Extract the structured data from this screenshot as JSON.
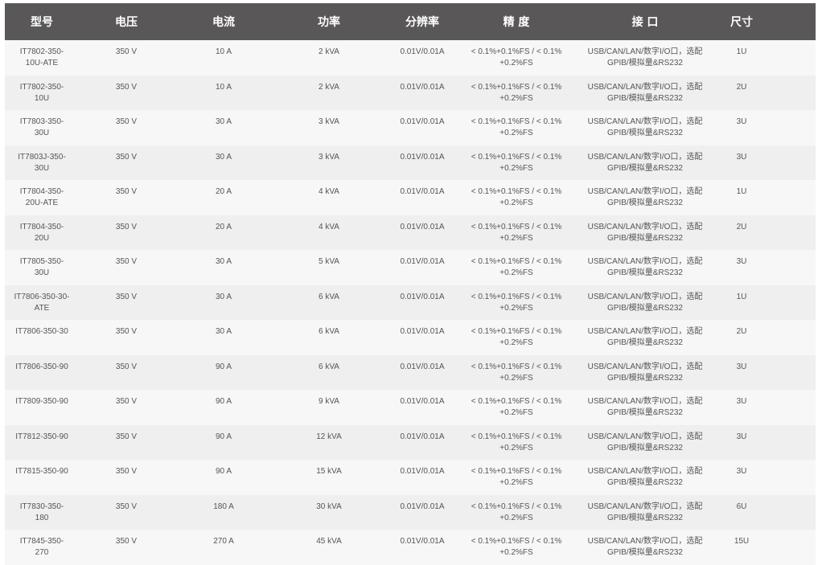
{
  "headers": [
    "型号",
    "电压",
    "电流",
    "功率",
    "分辨率",
    "精 度",
    "接 口",
    "尺寸"
  ],
  "rows": [
    {
      "model": "IT7802-350-\n10U-ATE",
      "voltage": "350 V",
      "current": "10 A",
      "power": "2 kVA",
      "resolution": "0.01V/0.01A",
      "accuracy": "< 0.1%+0.1%FS / < 0.1%\n+0.2%FS",
      "interface": "USB/CAN/LAN/数字I/O口，选配\nGPIB/模拟量&RS232",
      "size": "1U"
    },
    {
      "model": "IT7802-350-\n10U",
      "voltage": "350 V",
      "current": "10 A",
      "power": "2 kVA",
      "resolution": "0.01V/0.01A",
      "accuracy": "< 0.1%+0.1%FS / < 0.1%\n+0.2%FS",
      "interface": "USB/CAN/LAN/数字I/O口，选配\nGPIB/模拟量&RS232",
      "size": "2U"
    },
    {
      "model": "IT7803-350-\n30U",
      "voltage": "350 V",
      "current": "30 A",
      "power": "3 kVA",
      "resolution": "0.01V/0.01A",
      "accuracy": "< 0.1%+0.1%FS / < 0.1%\n+0.2%FS",
      "interface": "USB/CAN/LAN/数字I/O口，选配\nGPIB/模拟量&RS232",
      "size": "3U"
    },
    {
      "model": "IT7803J-350-\n30U",
      "voltage": "350 V",
      "current": "30 A",
      "power": "3 kVA",
      "resolution": "0.01V/0.01A",
      "accuracy": "< 0.1%+0.1%FS / < 0.1%\n+0.2%FS",
      "interface": "USB/CAN/LAN/数字I/O口，选配\nGPIB/模拟量&RS232",
      "size": "3U"
    },
    {
      "model": "IT7804-350-\n20U-ATE",
      "voltage": "350 V",
      "current": "20 A",
      "power": "4 kVA",
      "resolution": "0.01V/0.01A",
      "accuracy": "< 0.1%+0.1%FS / < 0.1%\n+0.2%FS",
      "interface": "USB/CAN/LAN/数字I/O口，选配\nGPIB/模拟量&RS232",
      "size": "1U"
    },
    {
      "model": "IT7804-350-\n20U",
      "voltage": "350 V",
      "current": "20 A",
      "power": "4 kVA",
      "resolution": "0.01V/0.01A",
      "accuracy": "< 0.1%+0.1%FS / < 0.1%\n+0.2%FS",
      "interface": "USB/CAN/LAN/数字I/O口，选配\nGPIB/模拟量&RS232",
      "size": "2U"
    },
    {
      "model": "IT7805-350-\n30U",
      "voltage": "350 V",
      "current": "30 A",
      "power": "5 kVA",
      "resolution": "0.01V/0.01A",
      "accuracy": "< 0.1%+0.1%FS / < 0.1%\n+0.2%FS",
      "interface": "USB/CAN/LAN/数字I/O口，选配\nGPIB/模拟量&RS232",
      "size": "3U"
    },
    {
      "model": "IT7806-350-30-\nATE",
      "voltage": "350 V",
      "current": "30 A",
      "power": "6 kVA",
      "resolution": "0.01V/0.01A",
      "accuracy": "< 0.1%+0.1%FS / < 0.1%\n+0.2%FS",
      "interface": "USB/CAN/LAN/数字I/O口，选配\nGPIB/模拟量&RS232",
      "size": "1U"
    },
    {
      "model": "IT7806-350-30",
      "voltage": "350 V",
      "current": "30 A",
      "power": "6 kVA",
      "resolution": "0.01V/0.01A",
      "accuracy": "< 0.1%+0.1%FS / < 0.1%\n+0.2%FS",
      "interface": "USB/CAN/LAN/数字I/O口，选配\nGPIB/模拟量&RS232",
      "size": "2U"
    },
    {
      "model": "IT7806-350-90",
      "voltage": "350 V",
      "current": "90 A",
      "power": "6 kVA",
      "resolution": "0.01V/0.01A",
      "accuracy": "< 0.1%+0.1%FS / < 0.1%\n+0.2%FS",
      "interface": "USB/CAN/LAN/数字I/O口，选配\nGPIB/模拟量&RS232",
      "size": "3U"
    },
    {
      "model": "IT7809-350-90",
      "voltage": "350 V",
      "current": "90 A",
      "power": "9 kVA",
      "resolution": "0.01V/0.01A",
      "accuracy": "< 0.1%+0.1%FS / < 0.1%\n+0.2%FS",
      "interface": "USB/CAN/LAN/数字I/O口，选配\nGPIB/模拟量&RS232",
      "size": "3U"
    },
    {
      "model": "IT7812-350-90",
      "voltage": "350 V",
      "current": "90 A",
      "power": "12 kVA",
      "resolution": "0.01V/0.01A",
      "accuracy": "< 0.1%+0.1%FS / < 0.1%\n+0.2%FS",
      "interface": "USB/CAN/LAN/数字I/O口，选配\nGPIB/模拟量&RS232",
      "size": "3U"
    },
    {
      "model": "IT7815-350-90",
      "voltage": "350 V",
      "current": "90 A",
      "power": "15 kVA",
      "resolution": "0.01V/0.01A",
      "accuracy": "< 0.1%+0.1%FS / < 0.1%\n+0.2%FS",
      "interface": "USB/CAN/LAN/数字I/O口，选配\nGPIB/模拟量&RS232",
      "size": "3U"
    },
    {
      "model": "IT7830-350-\n180",
      "voltage": "350 V",
      "current": "180 A",
      "power": "30 kVA",
      "resolution": "0.01V/0.01A",
      "accuracy": "< 0.1%+0.1%FS / < 0.1%\n+0.2%FS",
      "interface": "USB/CAN/LAN/数字I/O口，选配\nGPIB/模拟量&RS232",
      "size": "6U"
    },
    {
      "model": "IT7845-350-\n270",
      "voltage": "350 V",
      "current": "270 A",
      "power": "45 kVA",
      "resolution": "0.01V/0.01A",
      "accuracy": "< 0.1%+0.1%FS / < 0.1%\n+0.2%FS",
      "interface": "USB/CAN/LAN/数字I/O口，选配\nGPIB/模拟量&RS232",
      "size": "15U"
    }
  ],
  "colors": {
    "header_bg": "#595757",
    "header_text": "#ffffff",
    "row_odd": "#f7f7f7",
    "row_even": "#efefef",
    "cell_text": "#555555"
  }
}
